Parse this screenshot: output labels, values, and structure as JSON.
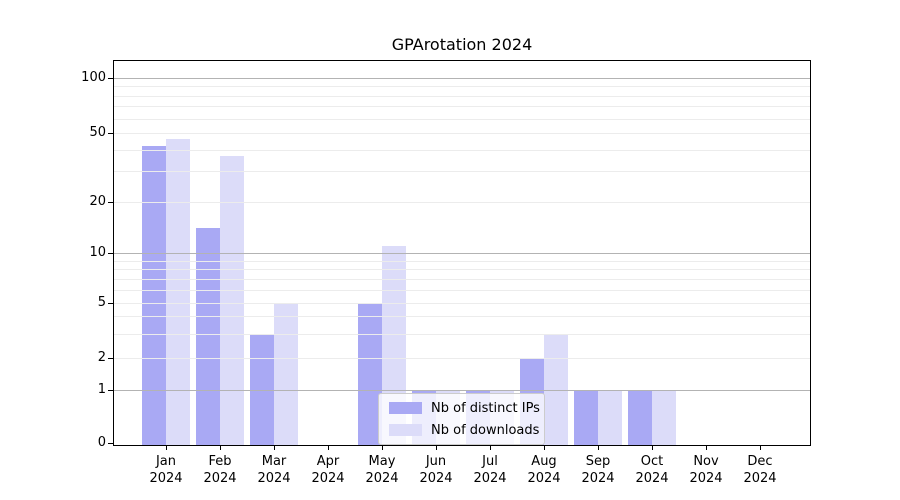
{
  "chart_data": {
    "type": "bar",
    "title": "GPArotation 2024",
    "categories": [
      "Jan 2024",
      "Feb 2024",
      "Mar 2024",
      "Apr 2024",
      "May 2024",
      "Jun 2024",
      "Jul 2024",
      "Aug 2024",
      "Sep 2024",
      "Oct 2024",
      "Nov 2024",
      "Dec 2024"
    ],
    "series": [
      {
        "name": "Nb of distinct IPs",
        "color": "#a9a9f4",
        "values": [
          42,
          14,
          3,
          0,
          5,
          1,
          1,
          2,
          1,
          1,
          0,
          0
        ]
      },
      {
        "name": "Nb of downloads",
        "color": "#dcdcf9",
        "values": [
          46,
          37,
          5,
          0,
          11,
          1,
          1,
          3,
          1,
          1,
          0,
          0
        ]
      }
    ],
    "yticks": [
      100,
      50,
      20,
      10,
      5,
      2,
      1,
      0
    ],
    "yscale": "log-with-zero",
    "ylim": [
      0,
      130
    ],
    "grid": true,
    "legend_position": "lower center"
  }
}
